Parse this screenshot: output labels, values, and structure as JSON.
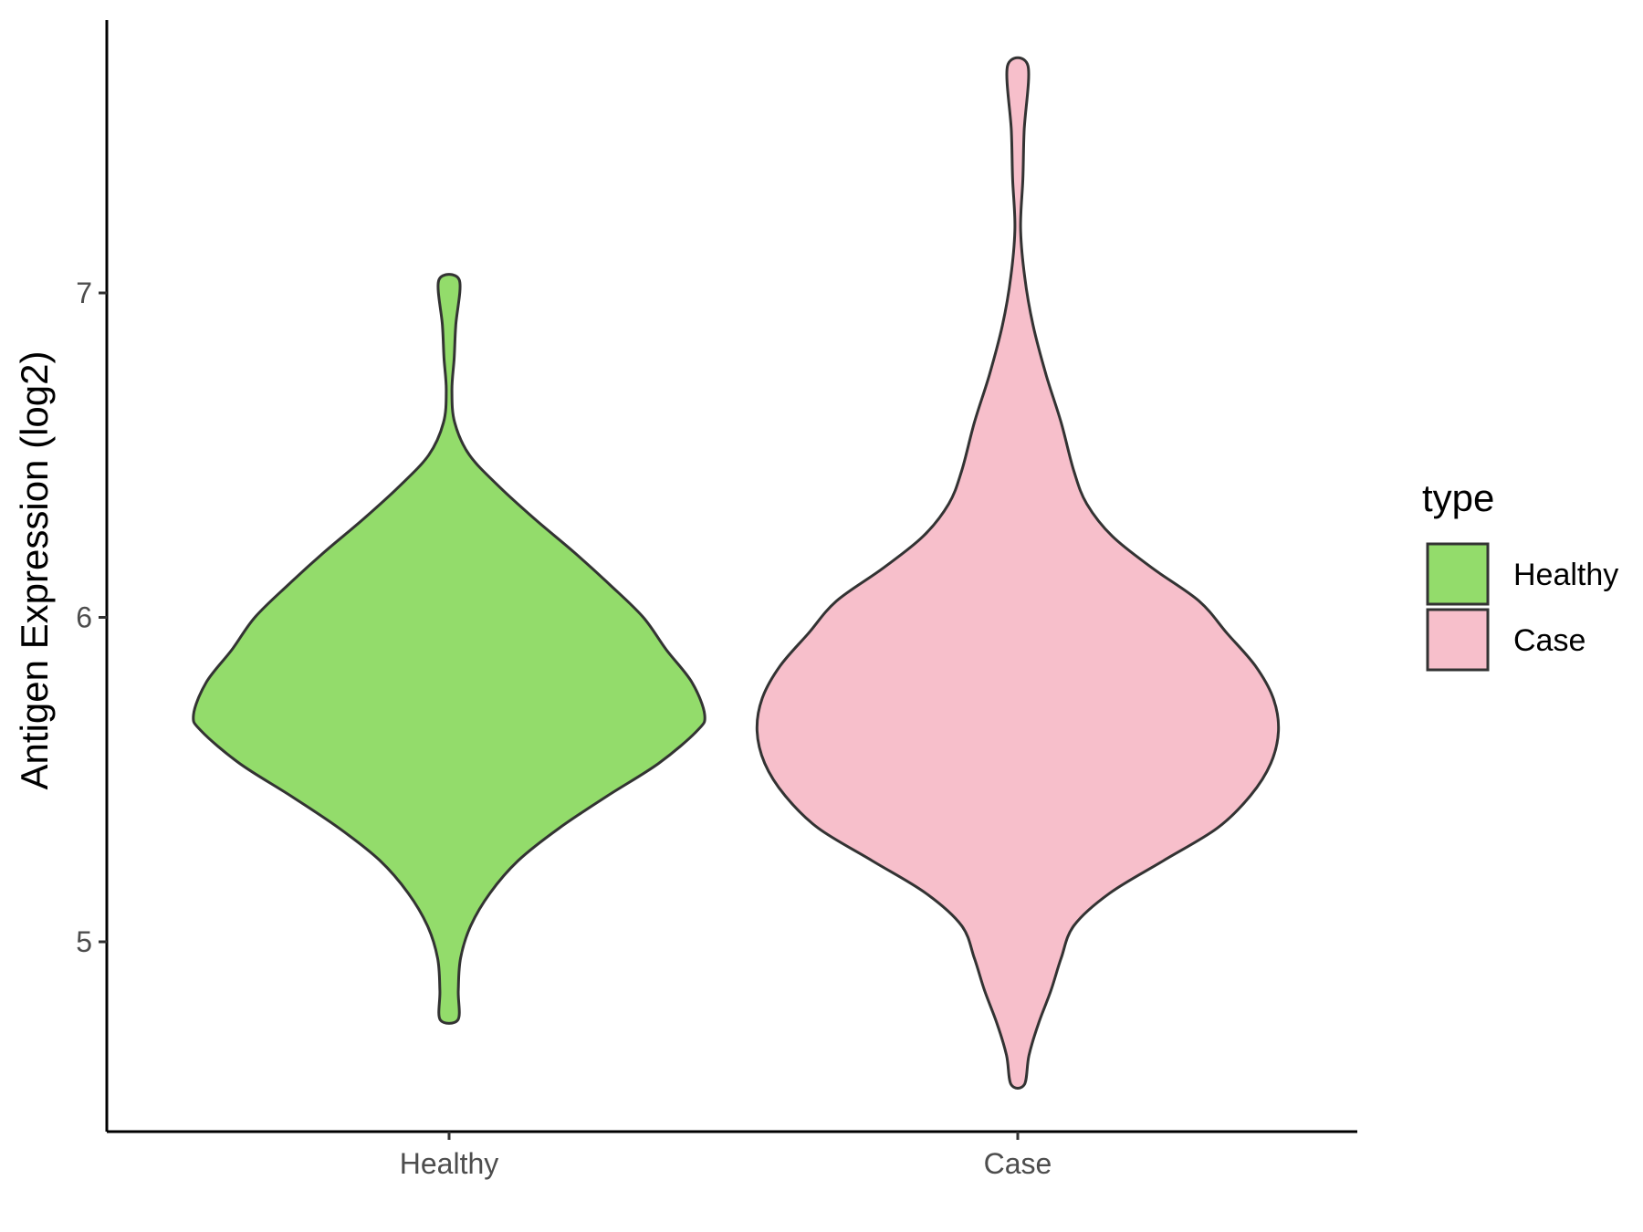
{
  "chart_data": {
    "type": "violin",
    "title": "",
    "xlabel": "",
    "ylabel": "Antigen Expression (log2)",
    "categories": [
      "Healthy",
      "Case"
    ],
    "ylim": [
      4.42,
      7.85
    ],
    "yticks": [
      5,
      6,
      7
    ],
    "grid": false,
    "legend": {
      "title": "type",
      "placement": "right",
      "entries": [
        {
          "label": "Healthy",
          "color": "#93DC6B"
        },
        {
          "label": "Case",
          "color": "#F7BFCB"
        }
      ]
    },
    "series": [
      {
        "name": "Healthy",
        "color": "#93DC6B",
        "y_range": [
          4.76,
          7.04
        ],
        "density_profile": [
          [
            4.76,
            0.035
          ],
          [
            4.85,
            0.036
          ],
          [
            4.95,
            0.045
          ],
          [
            5.05,
            0.085
          ],
          [
            5.15,
            0.16
          ],
          [
            5.25,
            0.27
          ],
          [
            5.35,
            0.43
          ],
          [
            5.45,
            0.62
          ],
          [
            5.55,
            0.82
          ],
          [
            5.65,
            0.97
          ],
          [
            5.7,
            1.0
          ],
          [
            5.8,
            0.95
          ],
          [
            5.9,
            0.85
          ],
          [
            6.0,
            0.76
          ],
          [
            6.1,
            0.63
          ],
          [
            6.2,
            0.49
          ],
          [
            6.3,
            0.34
          ],
          [
            6.4,
            0.2
          ],
          [
            6.5,
            0.08
          ],
          [
            6.6,
            0.022
          ],
          [
            6.7,
            0.011
          ],
          [
            6.8,
            0.02
          ],
          [
            6.9,
            0.026
          ],
          [
            7.04,
            0.04
          ]
        ]
      },
      {
        "name": "Case",
        "color": "#F7BFCB",
        "y_range": [
          4.56,
          7.7
        ],
        "density_profile": [
          [
            4.56,
            0.026
          ],
          [
            4.65,
            0.044
          ],
          [
            4.75,
            0.082
          ],
          [
            4.85,
            0.13
          ],
          [
            4.95,
            0.17
          ],
          [
            5.05,
            0.22
          ],
          [
            5.15,
            0.36
          ],
          [
            5.25,
            0.57
          ],
          [
            5.35,
            0.78
          ],
          [
            5.45,
            0.91
          ],
          [
            5.55,
            0.99
          ],
          [
            5.65,
            1.02
          ],
          [
            5.75,
            1.0
          ],
          [
            5.85,
            0.93
          ],
          [
            5.95,
            0.82
          ],
          [
            6.05,
            0.71
          ],
          [
            6.15,
            0.53
          ],
          [
            6.25,
            0.37
          ],
          [
            6.35,
            0.27
          ],
          [
            6.45,
            0.22
          ],
          [
            6.6,
            0.17
          ],
          [
            6.75,
            0.11
          ],
          [
            6.9,
            0.06
          ],
          [
            7.05,
            0.027
          ],
          [
            7.2,
            0.011
          ],
          [
            7.35,
            0.02
          ],
          [
            7.5,
            0.025
          ],
          [
            7.7,
            0.04
          ]
        ]
      }
    ]
  }
}
